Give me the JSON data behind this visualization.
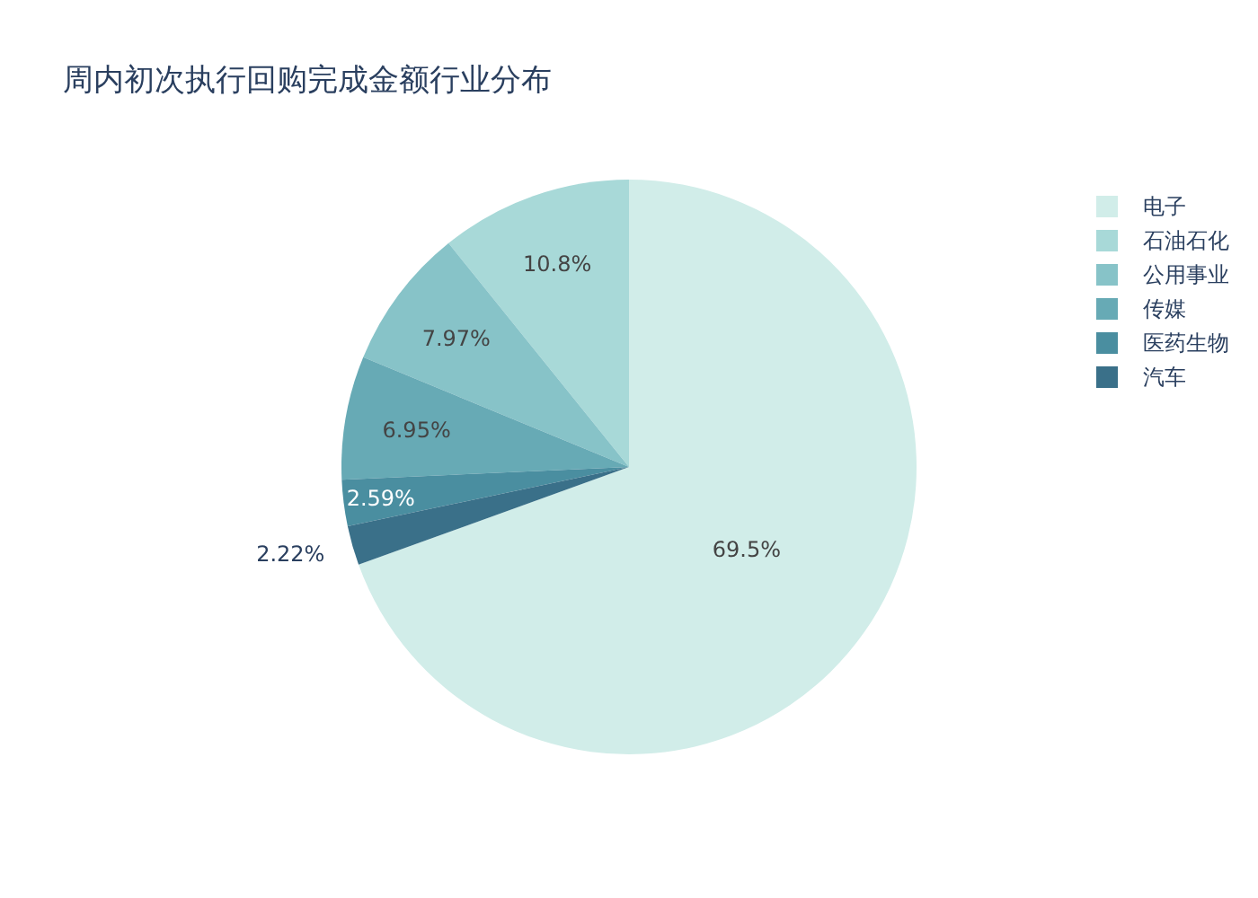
{
  "chart_data": {
    "type": "pie",
    "title": "周内初次执行回购完成金额行业分布",
    "categories": [
      "电子",
      "石油石化",
      "公用事业",
      "传媒",
      "医药生物",
      "汽车"
    ],
    "values": [
      69.5,
      10.8,
      7.97,
      6.95,
      2.59,
      2.22
    ],
    "colors": [
      "#d1ede9",
      "#a8d9d8",
      "#87c3c8",
      "#67aab5",
      "#4a8ea0",
      "#3a7089"
    ],
    "value_labels": [
      "69.5%",
      "10.8%",
      "7.97%",
      "6.95%",
      "2.59%",
      "2.22%"
    ],
    "legend": "top right"
  }
}
